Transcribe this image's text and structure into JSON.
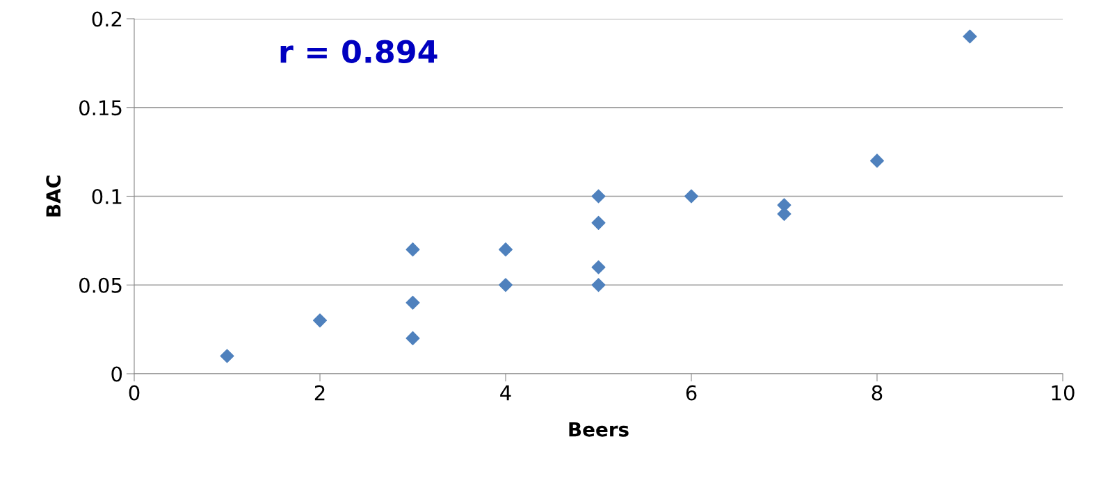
{
  "chart_data": {
    "type": "scatter",
    "xlabel": "Beers",
    "ylabel": "BAC",
    "annotations": [
      "r = 0.894"
    ],
    "x": [
      1,
      2,
      3,
      3,
      3,
      4,
      4,
      5,
      5,
      5,
      5,
      6,
      7,
      7,
      8,
      9
    ],
    "values": [
      0.01,
      0.03,
      0.07,
      0.04,
      0.02,
      0.07,
      0.05,
      0.1,
      0.085,
      0.06,
      0.05,
      0.1,
      0.095,
      0.09,
      0.12,
      0.19
    ],
    "color": "#4f81bd",
    "marker": "diamond",
    "xlim": [
      0,
      10
    ],
    "xticks": [
      0,
      2,
      4,
      6,
      8,
      10
    ],
    "ylim": [
      0,
      0.2
    ],
    "yticks": [
      0,
      0.05,
      0.1,
      0.15,
      0.2
    ],
    "grid": "y",
    "legend": false
  }
}
